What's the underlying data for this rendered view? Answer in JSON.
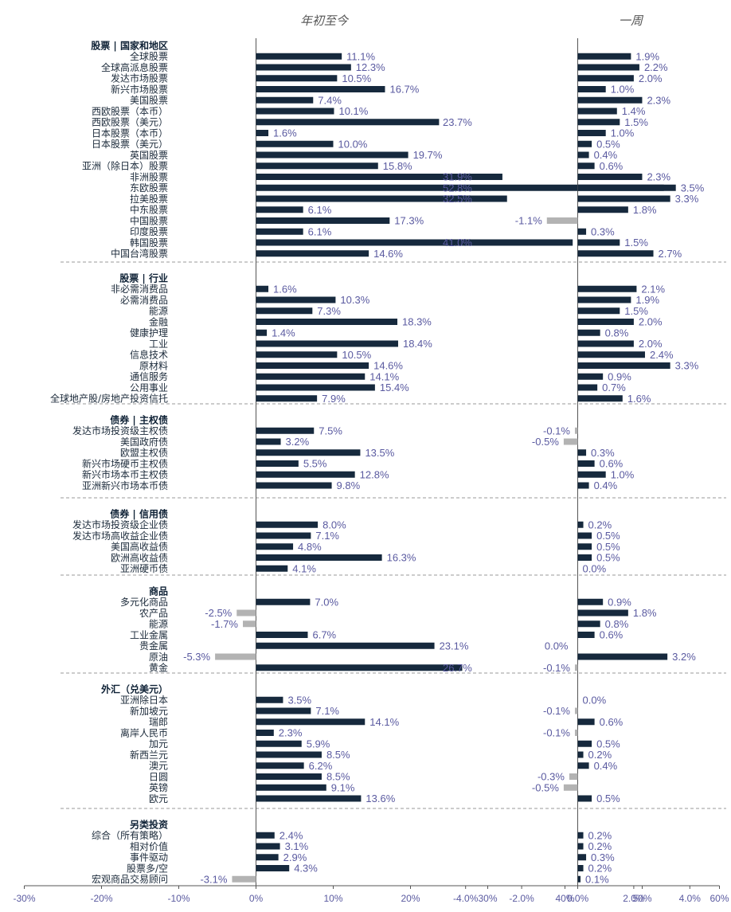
{
  "colors": {
    "positive": "#16293d",
    "negative": "#b3b3b3",
    "axis": "#555555",
    "separator": "#999999",
    "value_text": "#5a5aa0"
  },
  "chart_data": [
    {
      "type": "bar",
      "orientation": "horizontal",
      "title": "年初至今",
      "xlim": [
        -30,
        60
      ],
      "x_ticks": [
        -30,
        -20,
        -10,
        0,
        10,
        20,
        30,
        40,
        50,
        60
      ],
      "x_tick_labels": [
        "-30%",
        "-20%",
        "-10%",
        "0%",
        "10%",
        "20%",
        "30%",
        "40%",
        "50%",
        "60%"
      ],
      "unit": "%",
      "groups": [
        {
          "name": "股票 | 国家和地区",
          "categories": [
            "全球股票",
            "全球高派息股票",
            "发达市场股票",
            "新兴市场股票",
            "美国股票",
            "西欧股票（本币）",
            "西欧股票（美元）",
            "日本股票（本币）",
            "日本股票（美元）",
            "英国股票",
            "亚洲（除日本）股票",
            "非洲股票",
            "东欧股票",
            "拉美股票",
            "中东股票",
            "中国股票",
            "印度股票",
            "韩国股票",
            "中国台湾股票"
          ],
          "values": [
            11.1,
            12.3,
            10.5,
            16.7,
            7.4,
            10.1,
            23.7,
            1.6,
            10.0,
            19.7,
            15.8,
            31.9,
            52.8,
            32.5,
            6.1,
            17.3,
            6.1,
            41.0,
            14.6
          ]
        },
        {
          "name": "股票 | 行业",
          "categories": [
            "非必需消费品",
            "必需消费品",
            "能源",
            "金融",
            "健康护理",
            "工业",
            "信息技术",
            "原材料",
            "通信服务",
            "公用事业",
            "全球地产股/房地产投资信托"
          ],
          "values": [
            1.6,
            10.3,
            7.3,
            18.3,
            1.4,
            18.4,
            10.5,
            14.6,
            14.1,
            15.4,
            7.9
          ]
        },
        {
          "name": "债券 | 主权债",
          "categories": [
            "发达市场投资级主权债",
            "美国政府债",
            "欧盟主权债",
            "新兴市场硬币主权债",
            "新兴市场本币主权债",
            "亚洲新兴市场本币债"
          ],
          "values": [
            7.5,
            3.2,
            13.5,
            5.5,
            12.8,
            9.8
          ]
        },
        {
          "name": "债券 | 信用债",
          "categories": [
            "发达市场投资级企业债",
            "发达市场高收益企业债",
            "美国高收益债",
            "欧洲高收益债",
            "亚洲硬币债"
          ],
          "values": [
            8.0,
            7.1,
            4.8,
            16.3,
            4.1
          ]
        },
        {
          "name": "商品",
          "categories": [
            "多元化商品",
            "农产品",
            "能源",
            "工业金属",
            "贵金属",
            "原油",
            "黄金"
          ],
          "values": [
            7.0,
            -2.5,
            -1.7,
            6.7,
            23.1,
            -5.3,
            26.7
          ]
        },
        {
          "name": "外汇（兑美元）",
          "categories": [
            "亚洲除日本",
            "新加坡元",
            "瑞郎",
            "离岸人民币",
            "加元",
            "新西兰元",
            "澳元",
            "日圆",
            "英镑",
            "欧元"
          ],
          "values": [
            3.5,
            7.1,
            14.1,
            2.3,
            5.9,
            8.5,
            6.2,
            8.5,
            9.1,
            13.6
          ]
        },
        {
          "name": "另类投资",
          "categories": [
            "综合（所有策略）",
            "相对价值",
            "事件驱动",
            "股票多/空",
            "宏观商品交易顾问"
          ],
          "values": [
            2.4,
            3.1,
            2.9,
            4.3,
            -3.1
          ]
        }
      ]
    },
    {
      "type": "bar",
      "orientation": "horizontal",
      "title": "一周",
      "xlim": [
        -4,
        4
      ],
      "x_ticks": [
        -4,
        -2,
        0,
        2,
        4
      ],
      "x_tick_labels": [
        "-4.0%",
        "-2.0%",
        "0.0%",
        "2.0%",
        "4.0%"
      ],
      "unit": "%",
      "groups": [
        {
          "name": "股票 | 国家和地区",
          "values": [
            1.9,
            2.2,
            2.0,
            1.0,
            2.3,
            1.4,
            1.5,
            1.0,
            0.5,
            0.4,
            0.6,
            2.3,
            3.5,
            3.3,
            1.8,
            -1.1,
            0.3,
            1.5,
            2.7
          ]
        },
        {
          "name": "股票 | 行业",
          "values": [
            2.1,
            1.9,
            1.5,
            2.0,
            0.8,
            2.0,
            2.4,
            3.3,
            0.9,
            0.7,
            1.6
          ]
        },
        {
          "name": "债券 | 主权债",
          "values": [
            -0.1,
            -0.5,
            0.3,
            0.6,
            1.0,
            0.4
          ]
        },
        {
          "name": "债券 | 信用债",
          "values": [
            0.2,
            0.5,
            0.5,
            0.5,
            0.0
          ]
        },
        {
          "name": "商品",
          "values": [
            0.9,
            1.8,
            0.8,
            0.6,
            0.0,
            3.2,
            -0.1
          ]
        },
        {
          "name": "外汇（兑美元）",
          "values": [
            0.0,
            -0.1,
            0.6,
            -0.1,
            0.5,
            0.2,
            0.4,
            -0.3,
            -0.5,
            0.5
          ]
        },
        {
          "name": "另类投资",
          "values": [
            0.2,
            0.2,
            0.3,
            0.2,
            0.1
          ]
        }
      ]
    }
  ]
}
